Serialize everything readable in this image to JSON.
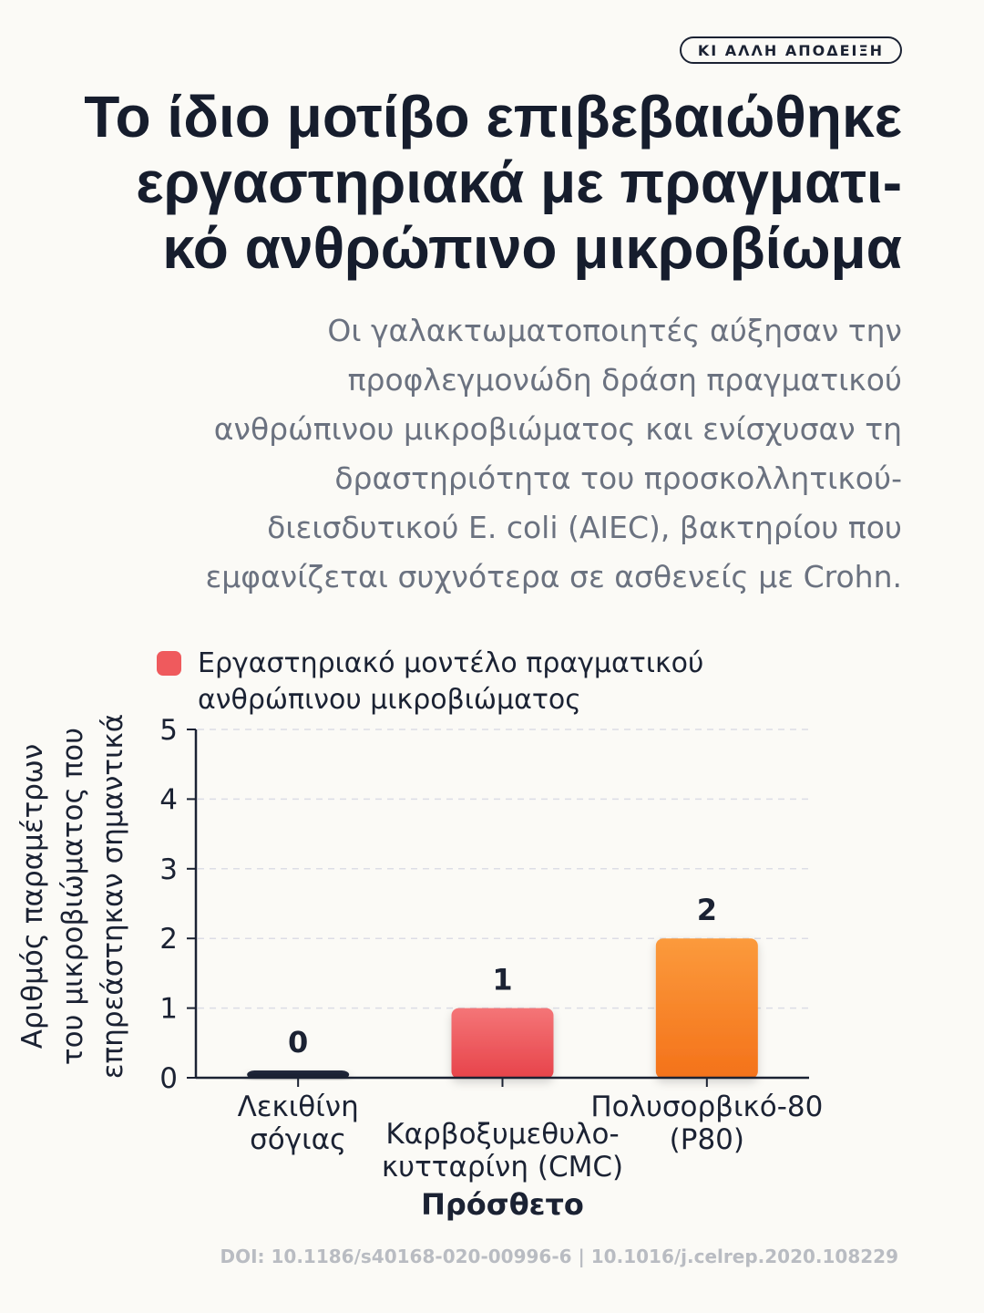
{
  "badge": "ΚΙ ΑΛΛΗ ΑΠΟΔΕΙΞΗ",
  "title_lines": [
    "Το ίδιο μοτίβο επιβεβαιώθηκε",
    "εργαστηριακά με πραγματι-",
    "κό ανθρώπινο μικροβίωμα"
  ],
  "subtitle_lines": [
    "Οι γαλακτωματοποιητές αύξησαν την",
    "προφλεγμονώδη δράση πραγματικού",
    "ανθρώπινου μικροβιώματος και ενίσχυσαν τη",
    "δραστηριότητα του προσκολλητικού-",
    "διεισδυτικού E. coli (AIEC), βακτηρίου που",
    "εμφανίζεται συχνότερα σε ασθενείς με Crohn."
  ],
  "footer": "DOI: 10.1186/s40168-020-00996-6 | 10.1016/j.celrep.2020.108229",
  "chart_data": {
    "type": "bar",
    "categories": [
      [
        "Λεκιθίνη",
        "σόγιας"
      ],
      [
        "Καρβοξυμεθυλο-",
        "κυτταρίνη (CMC)"
      ],
      [
        "Πολυσορβικό-80",
        "(P80)"
      ]
    ],
    "series": [
      {
        "name_lines": [
          "Εργαστηριακό μοντέλο πραγματικού",
          "ανθρώπινου μικροβιώματος"
        ],
        "values": [
          0,
          1,
          2
        ]
      }
    ],
    "bar_colors": [
      [
        "#232a3d",
        "#161d2d"
      ],
      [
        "#f47577",
        "#e7434a"
      ],
      [
        "#fb9a3c",
        "#f4721a"
      ]
    ],
    "legend_color": "#ef5a5d",
    "xlabel": "Πρόσθετο",
    "ylabel_lines": [
      "Αριθμός παραμέτρων",
      "του μικροβιώματος που",
      "επηρεάστηκαν σημαντικά"
    ],
    "yticks": [
      0,
      1,
      2,
      3,
      4,
      5
    ],
    "ylim": [
      0,
      5
    ],
    "grid": true,
    "legend_position": "top-left"
  }
}
